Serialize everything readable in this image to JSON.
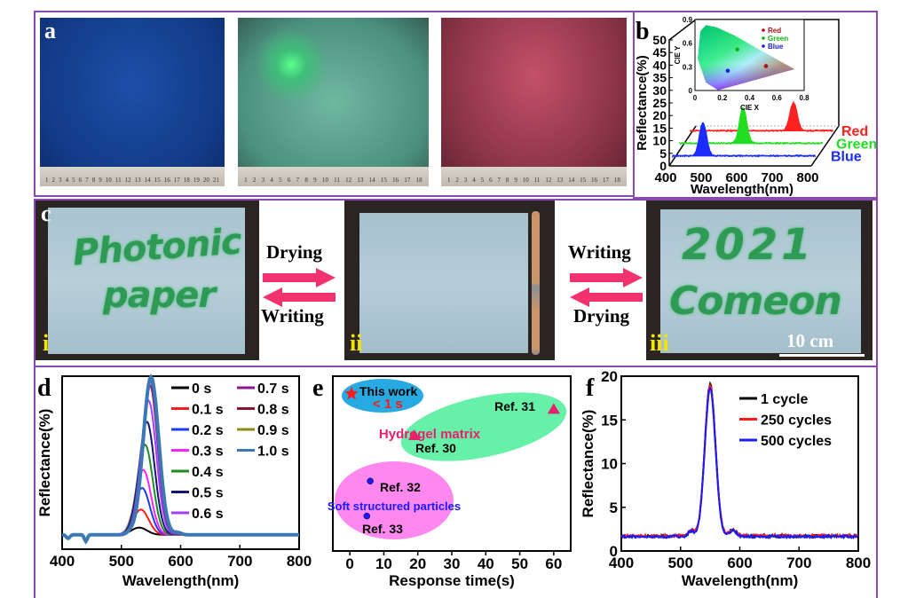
{
  "panels": {
    "a": {
      "label": "a",
      "rulers": [
        [
          "1",
          "2",
          "3",
          "4",
          "5",
          "6",
          "7",
          "8",
          "9",
          "10",
          "11",
          "12",
          "13",
          "14",
          "15",
          "16",
          "17",
          "18",
          "19",
          "20",
          "21"
        ],
        [
          "1",
          "2",
          "3",
          "4",
          "5",
          "6",
          "7",
          "8",
          "9",
          "10",
          "11",
          "12",
          "13",
          "14",
          "15",
          "16",
          "17",
          "18"
        ],
        [
          "1",
          "2",
          "3",
          "4",
          "5",
          "6",
          "7",
          "8",
          "9",
          "10",
          "11",
          "12",
          "13",
          "14",
          "15",
          "16",
          "17",
          "18"
        ]
      ]
    },
    "b": {
      "label": "b"
    },
    "c": {
      "label": "c",
      "photo_i": {
        "marker": "i",
        "writing_line1": "Photonic",
        "writing_line2": "paper"
      },
      "photo_ii": {
        "marker": "ii"
      },
      "photo_iii": {
        "marker": "iii",
        "writing_line1": "2021",
        "writing_line2": "Comeon",
        "scale_bar": "10 cm"
      },
      "arrows_left": {
        "top": "Drying",
        "bottom": "Writing"
      },
      "arrows_right": {
        "top": "Writing",
        "bottom": "Drying"
      }
    },
    "d": {
      "label": "d"
    },
    "e": {
      "label": "e"
    },
    "f": {
      "label": "f"
    }
  },
  "colors": {
    "frame": "#8a48b0",
    "arrow": "#f0326e"
  },
  "chart_data": [
    {
      "panel": "b",
      "type": "line",
      "xlabel": "Wavelength(nm)",
      "ylabel": "Reflectance(%)",
      "xlim": [
        400,
        800
      ],
      "ylim": [
        0,
        50
      ],
      "xticks": [
        "400",
        "500",
        "600",
        "700",
        "800"
      ],
      "yticks": [
        "0",
        "5",
        "10",
        "15",
        "20",
        "25",
        "30",
        "35",
        "40",
        "45",
        "50"
      ],
      "series": [
        {
          "name": "Red",
          "color": "#ff2020",
          "peak_nm": 690,
          "peak_reflectance": 25,
          "baseline": 14
        },
        {
          "name": "Green",
          "color": "#22dd22",
          "peak_nm": 578,
          "peak_reflectance": 23,
          "baseline": 9
        },
        {
          "name": "Blue",
          "color": "#1a2cff",
          "peak_nm": 485,
          "peak_reflectance": 17,
          "baseline": 4
        }
      ],
      "inset": {
        "type": "scatter",
        "xlabel": "CIE X",
        "ylabel": "CIE Y",
        "xticks": [
          "0",
          "0.2",
          "0.4",
          "0.6",
          "0.8"
        ],
        "yticks": [
          "0",
          "0.3",
          "0.6",
          "0.9"
        ],
        "points": [
          {
            "name": "Red",
            "x": 0.52,
            "y": 0.31,
            "color": "#b01010"
          },
          {
            "name": "Green",
            "x": 0.31,
            "y": 0.52,
            "color": "#10b010"
          },
          {
            "name": "Blue",
            "x": 0.24,
            "y": 0.25,
            "color": "#2020d0"
          }
        ]
      }
    },
    {
      "panel": "d",
      "type": "line",
      "xlabel": "Wavelength(nm)",
      "ylabel": "Reflectance(%)",
      "xlim": [
        400,
        800
      ],
      "ylim": [
        0,
        24
      ],
      "xticks": [
        "400",
        "500",
        "600",
        "700",
        "800"
      ],
      "series": [
        {
          "name": "0 s",
          "color": "#000000",
          "peak_nm": 530,
          "peak": 1.0
        },
        {
          "name": "0.1 s",
          "color": "#ff1a1a",
          "peak_nm": 533,
          "peak": 3.5
        },
        {
          "name": "0.2 s",
          "color": "#1a3cff",
          "peak_nm": 535,
          "peak": 6.5
        },
        {
          "name": "0.3 s",
          "color": "#ff22ff",
          "peak_nm": 537,
          "peak": 9.0
        },
        {
          "name": "0.4 s",
          "color": "#1e8c1e",
          "peak_nm": 540,
          "peak": 12.5
        },
        {
          "name": "0.5 s",
          "color": "#141478",
          "peak_nm": 543,
          "peak": 15.7
        },
        {
          "name": "0.6 s",
          "color": "#a43cff",
          "peak_nm": 546,
          "peak": 18.6
        },
        {
          "name": "0.7 s",
          "color": "#8c148c",
          "peak_nm": 548,
          "peak": 20.8
        },
        {
          "name": "0.8 s",
          "color": "#8c1428",
          "peak_nm": 549,
          "peak": 21.4
        },
        {
          "name": "0.9 s",
          "color": "#8c8c14",
          "peak_nm": 550,
          "peak": 21.8
        },
        {
          "name": "1.0 s",
          "color": "#3c78b4",
          "peak_nm": 550,
          "peak": 21.9
        }
      ]
    },
    {
      "panel": "e",
      "type": "scatter",
      "xlabel": "Response time(s)",
      "ylabel": "",
      "xlim": [
        -5,
        65
      ],
      "ylim": [
        0,
        10
      ],
      "xticks": [
        "0",
        "10",
        "20",
        "30",
        "40",
        "50",
        "60"
      ],
      "groups": [
        {
          "name": "This work",
          "note": "< 1 s",
          "color": "#27a9e1"
        },
        {
          "name": "Hydrogel matrix",
          "color": "#66f0a8"
        },
        {
          "name": "Soft structured particles",
          "color": "#ff88ee"
        }
      ],
      "points": [
        {
          "label": "This work",
          "x": 0.5,
          "y": 9.0,
          "marker": "star",
          "color": "#ff1a1a"
        },
        {
          "label": "Ref. 31",
          "x": 60,
          "y": 8.1,
          "marker": "triangle",
          "color": "#e8206e"
        },
        {
          "label": "Ref. 30",
          "x": 19,
          "y": 6.6,
          "marker": "triangle",
          "color": "#e8206e"
        },
        {
          "label": "Ref. 32",
          "x": 6,
          "y": 4.0,
          "marker": "sphere",
          "color": "#1a1aff"
        },
        {
          "label": "Ref. 33",
          "x": 5,
          "y": 2.0,
          "marker": "sphere",
          "color": "#1a1aff"
        }
      ]
    },
    {
      "panel": "f",
      "type": "line",
      "xlabel": "Wavelength(nm)",
      "ylabel": "Reflectance(%)",
      "xlim": [
        400,
        800
      ],
      "ylim": [
        0,
        20
      ],
      "xticks": [
        "400",
        "500",
        "600",
        "700",
        "800"
      ],
      "yticks": [
        "0",
        "5",
        "10",
        "15",
        "20"
      ],
      "series": [
        {
          "name": "1 cycle",
          "color": "#000000",
          "peak_nm": 550,
          "peak": 17.4,
          "baseline": 1.7
        },
        {
          "name": "250 cycles",
          "color": "#ff1a1a",
          "peak_nm": 550,
          "peak": 17.2,
          "baseline": 1.75
        },
        {
          "name": "500 cycles",
          "color": "#1a1aff",
          "peak_nm": 550,
          "peak": 16.9,
          "baseline": 1.65
        }
      ]
    }
  ]
}
